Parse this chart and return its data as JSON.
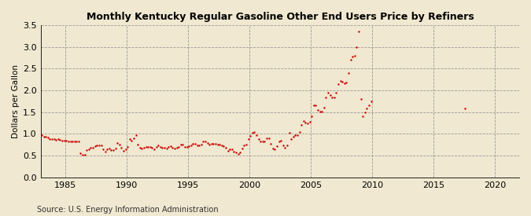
{
  "title": "Monthly Kentucky Regular Gasoline Other End Users Price by Refiners",
  "ylabel": "Dollars per Gallon",
  "source": "Source: U.S. Energy Information Administration",
  "bg_color": "#f0e8d0",
  "plot_bg_color": "#f0e8d0",
  "dot_color": "#cc0000",
  "dot_size": 3,
  "xlim": [
    1983,
    2022
  ],
  "ylim": [
    0.0,
    3.5
  ],
  "yticks": [
    0.0,
    0.5,
    1.0,
    1.5,
    2.0,
    2.5,
    3.0,
    3.5
  ],
  "xticks": [
    1985,
    1990,
    1995,
    2000,
    2005,
    2010,
    2015,
    2020
  ],
  "dates": [
    1983.08,
    1983.25,
    1983.42,
    1983.58,
    1983.75,
    1983.92,
    1984.08,
    1984.25,
    1984.42,
    1984.58,
    1984.75,
    1984.92,
    1985.08,
    1985.25,
    1985.42,
    1985.58,
    1985.75,
    1985.92,
    1986.08,
    1986.25,
    1986.42,
    1986.58,
    1986.75,
    1986.92,
    1987.08,
    1987.25,
    1987.42,
    1987.58,
    1987.75,
    1987.92,
    1988.08,
    1988.25,
    1988.42,
    1988.58,
    1988.75,
    1988.92,
    1989.08,
    1989.25,
    1989.42,
    1989.58,
    1989.75,
    1989.92,
    1990.08,
    1990.25,
    1990.42,
    1990.58,
    1990.75,
    1990.92,
    1991.08,
    1991.25,
    1991.42,
    1991.58,
    1991.75,
    1991.92,
    1992.08,
    1992.25,
    1992.42,
    1992.58,
    1992.75,
    1992.92,
    1993.08,
    1993.25,
    1993.42,
    1993.58,
    1993.75,
    1993.92,
    1994.08,
    1994.25,
    1994.42,
    1994.58,
    1994.75,
    1994.92,
    1995.08,
    1995.25,
    1995.42,
    1995.58,
    1995.75,
    1995.92,
    1996.08,
    1996.25,
    1996.42,
    1996.58,
    1996.75,
    1996.92,
    1997.08,
    1997.25,
    1997.42,
    1997.58,
    1997.75,
    1997.92,
    1998.08,
    1998.25,
    1998.42,
    1998.58,
    1998.75,
    1998.92,
    1999.08,
    1999.25,
    1999.42,
    1999.58,
    1999.75,
    1999.92,
    2000.08,
    2000.25,
    2000.42,
    2000.58,
    2000.75,
    2000.92,
    2001.08,
    2001.25,
    2001.42,
    2001.58,
    2001.75,
    2001.92,
    2002.08,
    2002.25,
    2002.42,
    2002.58,
    2002.75,
    2002.92,
    2003.08,
    2003.25,
    2003.42,
    2003.58,
    2003.75,
    2003.92,
    2004.08,
    2004.25,
    2004.42,
    2004.58,
    2004.75,
    2004.92,
    2005.08,
    2005.25,
    2005.42,
    2005.58,
    2005.75,
    2005.92,
    2006.08,
    2006.25,
    2006.42,
    2006.58,
    2006.75,
    2006.92,
    2007.08,
    2007.25,
    2007.42,
    2007.58,
    2007.75,
    2007.92,
    2008.08,
    2008.25,
    2008.42,
    2008.58,
    2008.75,
    2008.92,
    2009.08,
    2009.25,
    2009.42,
    2009.58,
    2009.75,
    2009.92,
    2017.58
  ],
  "prices": [
    0.97,
    0.93,
    0.93,
    0.91,
    0.89,
    0.88,
    0.88,
    0.86,
    0.88,
    0.86,
    0.84,
    0.84,
    0.84,
    0.82,
    0.82,
    0.82,
    0.82,
    0.82,
    0.82,
    0.55,
    0.52,
    0.53,
    0.63,
    0.65,
    0.68,
    0.69,
    0.72,
    0.74,
    0.74,
    0.74,
    0.64,
    0.6,
    0.65,
    0.67,
    0.63,
    0.63,
    0.66,
    0.8,
    0.76,
    0.68,
    0.62,
    0.64,
    0.7,
    0.88,
    0.84,
    0.9,
    0.97,
    0.76,
    0.68,
    0.66,
    0.68,
    0.7,
    0.7,
    0.7,
    0.68,
    0.65,
    0.7,
    0.73,
    0.7,
    0.69,
    0.69,
    0.67,
    0.7,
    0.72,
    0.68,
    0.66,
    0.68,
    0.71,
    0.75,
    0.76,
    0.7,
    0.71,
    0.72,
    0.74,
    0.78,
    0.78,
    0.73,
    0.73,
    0.76,
    0.83,
    0.83,
    0.8,
    0.76,
    0.78,
    0.78,
    0.78,
    0.76,
    0.76,
    0.74,
    0.72,
    0.68,
    0.62,
    0.64,
    0.65,
    0.6,
    0.58,
    0.54,
    0.58,
    0.66,
    0.73,
    0.76,
    0.88,
    0.96,
    1.03,
    1.05,
    0.98,
    0.88,
    0.82,
    0.82,
    0.82,
    0.9,
    0.9,
    0.78,
    0.66,
    0.64,
    0.72,
    0.82,
    0.84,
    0.73,
    0.68,
    0.74,
    1.03,
    0.88,
    0.93,
    0.97,
    0.98,
    1.04,
    1.2,
    1.3,
    1.26,
    1.24,
    1.28,
    1.4,
    1.65,
    1.65,
    1.55,
    1.51,
    1.52,
    1.6,
    1.84,
    1.95,
    1.9,
    1.84,
    1.84,
    1.95,
    2.15,
    2.22,
    2.2,
    2.16,
    2.19,
    2.4,
    2.7,
    2.78,
    2.8,
    3.0,
    3.35,
    1.8,
    1.4,
    1.5,
    1.58,
    1.65,
    1.75,
    1.59
  ]
}
